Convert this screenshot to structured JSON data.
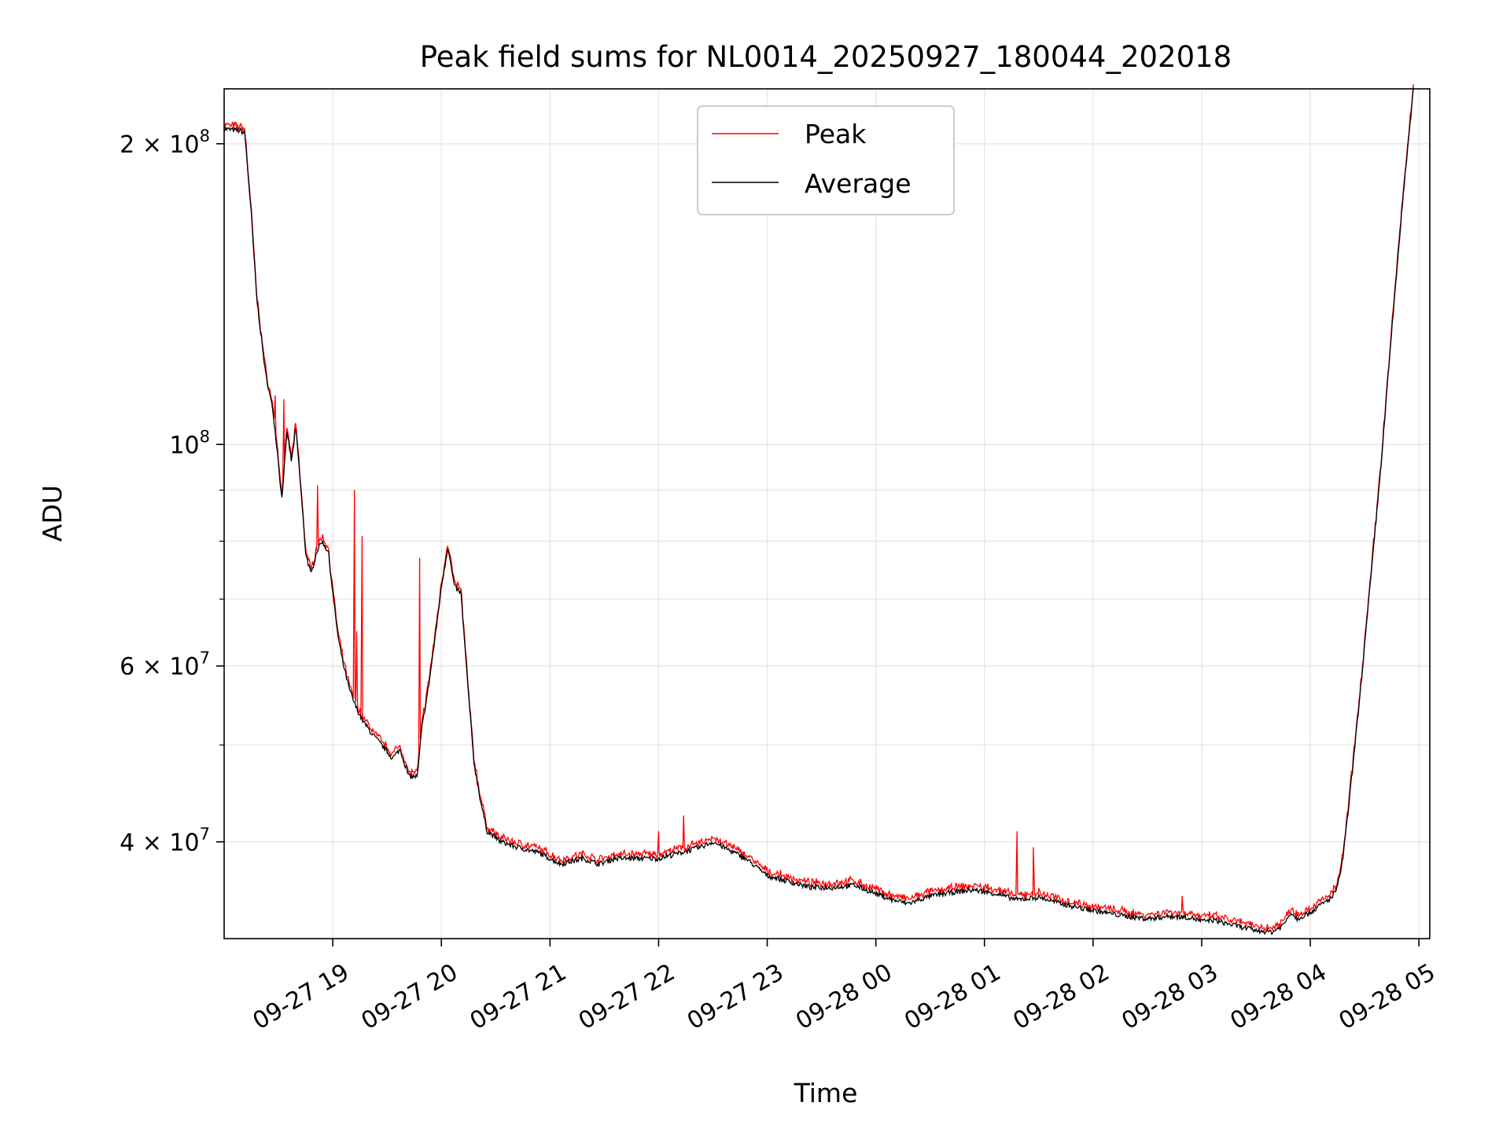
{
  "chart_data": {
    "type": "line",
    "title": "Peak field sums for NL0014_20250927_180044_202018",
    "xlabel": "Time",
    "ylabel": "ADU",
    "yscale": "log",
    "ylim": [
      32000000,
      227000000
    ],
    "xlim_hours": [
      18.0,
      29.1
    ],
    "grid": true,
    "legend_position": "upper center",
    "x_ticks": [
      {
        "hour": 19,
        "label": "09-27 19"
      },
      {
        "hour": 20,
        "label": "09-27 20"
      },
      {
        "hour": 21,
        "label": "09-27 21"
      },
      {
        "hour": 22,
        "label": "09-27 22"
      },
      {
        "hour": 23,
        "label": "09-27 23"
      },
      {
        "hour": 24,
        "label": "09-28 00"
      },
      {
        "hour": 25,
        "label": "09-28 01"
      },
      {
        "hour": 26,
        "label": "09-28 02"
      },
      {
        "hour": 27,
        "label": "09-28 03"
      },
      {
        "hour": 28,
        "label": "09-28 04"
      },
      {
        "hour": 29,
        "label": "09-28 05"
      }
    ],
    "y_ticks_major": [
      {
        "value": 40000000,
        "base": "4 × 10",
        "exp": "7"
      },
      {
        "value": 60000000,
        "base": "6 × 10",
        "exp": "7"
      },
      {
        "value": 100000000,
        "base": "10",
        "exp": "8"
      },
      {
        "value": 200000000,
        "base": "2 × 10",
        "exp": "8"
      }
    ],
    "y_ticks_minor": [
      50000000,
      70000000,
      80000000,
      90000000
    ],
    "series": [
      {
        "name": "Peak",
        "color": "#ff0000",
        "spikes": [
          {
            "hour": 18.47,
            "value": 112000000
          },
          {
            "hour": 18.55,
            "value": 111000000
          },
          {
            "hour": 18.86,
            "value": 91000000
          },
          {
            "hour": 19.2,
            "value": 90000000
          },
          {
            "hour": 19.22,
            "value": 65000000
          },
          {
            "hour": 19.27,
            "value": 81000000
          },
          {
            "hour": 19.8,
            "value": 77000000
          },
          {
            "hour": 22.0,
            "value": 41000000
          },
          {
            "hour": 22.23,
            "value": 42500000
          },
          {
            "hour": 25.3,
            "value": 41000000
          },
          {
            "hour": 25.45,
            "value": 39500000
          },
          {
            "hour": 26.82,
            "value": 35300000
          }
        ]
      },
      {
        "name": "Average",
        "color": "#000000",
        "points": [
          [
            18.0,
            207000000
          ],
          [
            18.15,
            206000000
          ],
          [
            18.19,
            205000000
          ],
          [
            18.25,
            170000000
          ],
          [
            18.3,
            140000000
          ],
          [
            18.38,
            118000000
          ],
          [
            18.45,
            108000000
          ],
          [
            18.5,
            96000000
          ],
          [
            18.53,
            88000000
          ],
          [
            18.58,
            103000000
          ],
          [
            18.62,
            96000000
          ],
          [
            18.66,
            104000000
          ],
          [
            18.7,
            92000000
          ],
          [
            18.75,
            78000000
          ],
          [
            18.8,
            74000000
          ],
          [
            18.85,
            78000000
          ],
          [
            18.9,
            80000000
          ],
          [
            18.96,
            78000000
          ],
          [
            19.0,
            71000000
          ],
          [
            19.05,
            64000000
          ],
          [
            19.1,
            60000000
          ],
          [
            19.15,
            57000000
          ],
          [
            19.2,
            55000000
          ],
          [
            19.27,
            53000000
          ],
          [
            19.35,
            51500000
          ],
          [
            19.45,
            50000000
          ],
          [
            19.55,
            48500000
          ],
          [
            19.62,
            49500000
          ],
          [
            19.7,
            46500000
          ],
          [
            19.78,
            46500000
          ],
          [
            19.82,
            52000000
          ],
          [
            19.88,
            57000000
          ],
          [
            19.95,
            65000000
          ],
          [
            20.0,
            72000000
          ],
          [
            20.06,
            79000000
          ],
          [
            20.12,
            72000000
          ],
          [
            20.18,
            71000000
          ],
          [
            20.24,
            58000000
          ],
          [
            20.3,
            48000000
          ],
          [
            20.36,
            44000000
          ],
          [
            20.42,
            41000000
          ],
          [
            20.55,
            40000000
          ],
          [
            20.7,
            39500000
          ],
          [
            20.9,
            39000000
          ],
          [
            21.1,
            38000000
          ],
          [
            21.3,
            38500000
          ],
          [
            21.45,
            38000000
          ],
          [
            21.6,
            38500000
          ],
          [
            21.8,
            38500000
          ],
          [
            22.0,
            38500000
          ],
          [
            22.2,
            39000000
          ],
          [
            22.38,
            39500000
          ],
          [
            22.5,
            40000000
          ],
          [
            22.6,
            39500000
          ],
          [
            22.8,
            38500000
          ],
          [
            23.0,
            37000000
          ],
          [
            23.2,
            36500000
          ],
          [
            23.4,
            36000000
          ],
          [
            23.6,
            36000000
          ],
          [
            23.8,
            36200000
          ],
          [
            24.0,
            35500000
          ],
          [
            24.15,
            35000000
          ],
          [
            24.3,
            34700000
          ],
          [
            24.5,
            35300000
          ],
          [
            24.7,
            35600000
          ],
          [
            24.9,
            35800000
          ],
          [
            25.1,
            35500000
          ],
          [
            25.3,
            35000000
          ],
          [
            25.5,
            35200000
          ],
          [
            25.7,
            34700000
          ],
          [
            25.9,
            34300000
          ],
          [
            26.1,
            34000000
          ],
          [
            26.3,
            33700000
          ],
          [
            26.5,
            33500000
          ],
          [
            26.7,
            33700000
          ],
          [
            26.9,
            33600000
          ],
          [
            27.0,
            33300000
          ],
          [
            27.1,
            33400000
          ],
          [
            27.3,
            33000000
          ],
          [
            27.5,
            32600000
          ],
          [
            27.65,
            32500000
          ],
          [
            27.75,
            33000000
          ],
          [
            27.82,
            34000000
          ],
          [
            27.88,
            33500000
          ],
          [
            28.0,
            34000000
          ],
          [
            28.1,
            34600000
          ],
          [
            28.2,
            35200000
          ],
          [
            28.25,
            36000000
          ],
          [
            28.3,
            38500000
          ],
          [
            28.35,
            43000000
          ],
          [
            28.45,
            55000000
          ],
          [
            28.55,
            72000000
          ],
          [
            28.65,
            95000000
          ],
          [
            28.75,
            130000000
          ],
          [
            28.85,
            175000000
          ],
          [
            28.95,
            227000000
          ]
        ]
      }
    ]
  }
}
